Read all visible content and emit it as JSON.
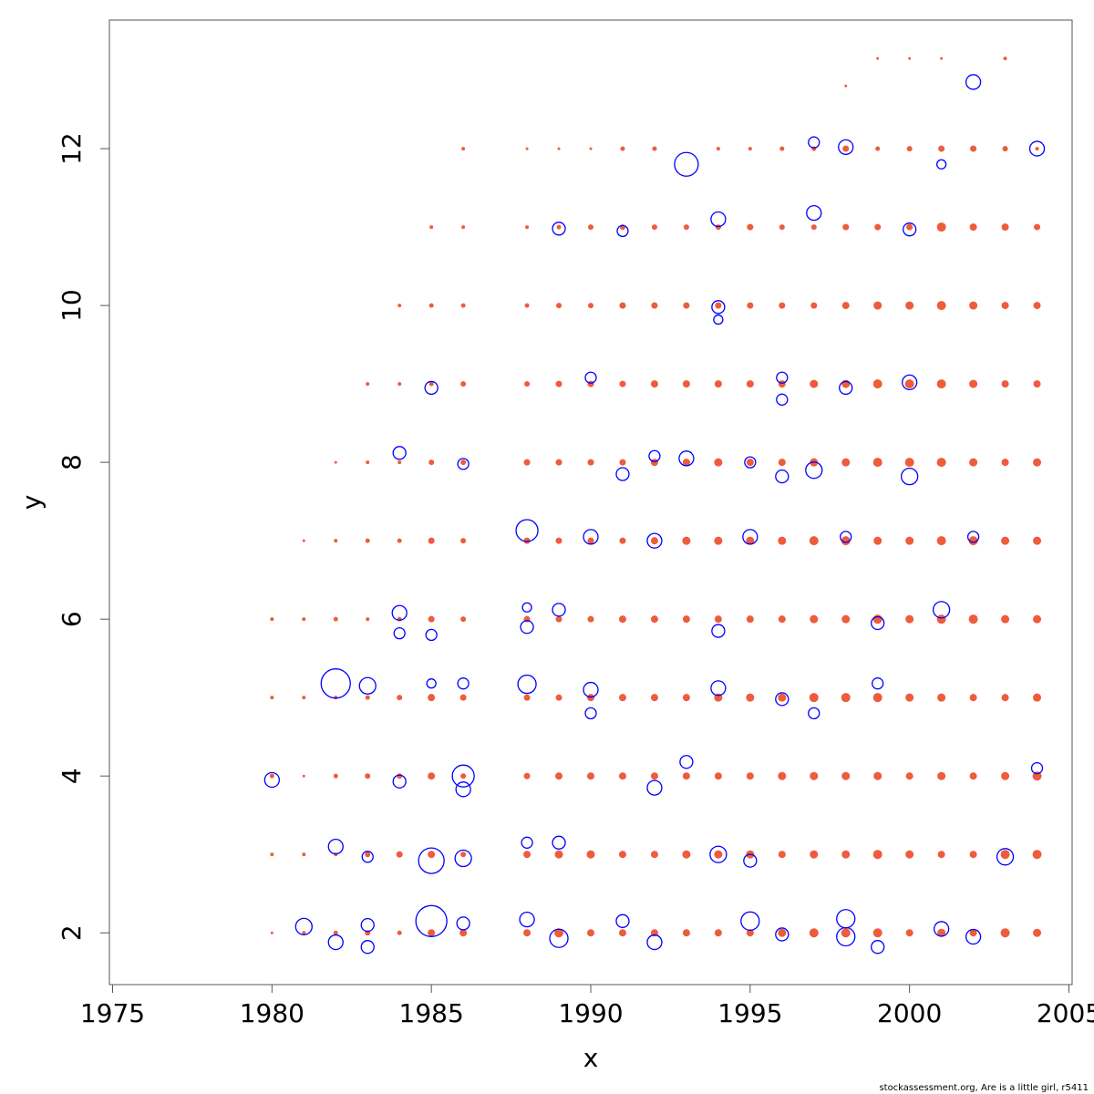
{
  "chart_data": {
    "type": "bubble",
    "xlabel": "x",
    "ylabel": "y",
    "footer": "stockassessment.org, Are is a little girl, r5411",
    "xlim": [
      1974.9,
      2005.1
    ],
    "ylim": [
      1.34,
      13.64
    ],
    "xticks": [
      1975,
      1980,
      1985,
      1990,
      1995,
      2000,
      2005
    ],
    "yticks": [
      2,
      4,
      6,
      8,
      10,
      12
    ],
    "series": [
      {
        "color": "#ee5c3c",
        "filled": true,
        "groups": [
          {
            "x": 1980,
            "y": [
              2,
              3,
              4,
              5,
              6
            ],
            "size": [
              1.5,
              2,
              2.5,
              2,
              2
            ]
          },
          {
            "x": 1981,
            "y": [
              2,
              3,
              4,
              5,
              6,
              7
            ],
            "size": [
              2,
              2,
              1.5,
              2,
              2,
              1.5
            ]
          },
          {
            "x": 1982,
            "y": [
              2,
              3,
              4,
              5,
              6,
              7,
              8
            ],
            "size": [
              2.5,
              2,
              2.5,
              2,
              2.5,
              2,
              1.5
            ]
          },
          {
            "x": 1983,
            "y": [
              2,
              3,
              4,
              5,
              6,
              7,
              8,
              9
            ],
            "size": [
              3,
              3,
              3,
              2.5,
              2,
              2.5,
              2,
              2
            ]
          },
          {
            "x": 1984,
            "y": [
              2,
              3,
              4,
              5,
              6,
              7,
              8,
              9,
              10
            ],
            "size": [
              2.5,
              3.5,
              3,
              3,
              2.5,
              2.5,
              2,
              2,
              2
            ]
          },
          {
            "x": 1985,
            "y": [
              2,
              3,
              4,
              5,
              6,
              7,
              8,
              9,
              10,
              11
            ],
            "size": [
              4,
              4,
              4,
              4,
              3.5,
              3.5,
              3,
              2.5,
              2.5,
              2
            ]
          },
          {
            "x": 1986,
            "y": [
              2,
              3,
              4,
              5,
              6,
              7,
              8,
              9,
              10,
              11,
              12
            ],
            "size": [
              4,
              3,
              3,
              3.5,
              3,
              3,
              3,
              3,
              2.5,
              2,
              2
            ]
          },
          {
            "x": 1988,
            "y": [
              2,
              3,
              4,
              5,
              6,
              7,
              8,
              9,
              10,
              11,
              12
            ],
            "size": [
              4,
              4,
              3.5,
              3.5,
              3.5,
              3.5,
              3.5,
              3,
              2.5,
              2,
              1.5
            ]
          },
          {
            "x": 1989,
            "y": [
              2,
              3,
              4,
              5,
              6,
              7,
              8,
              9,
              10,
              11,
              12
            ],
            "size": [
              5,
              4.5,
              4,
              3.5,
              3.5,
              3.5,
              3.5,
              3.5,
              3,
              2.5,
              1.5
            ]
          },
          {
            "x": 1990,
            "y": [
              2,
              3,
              4,
              5,
              6,
              7,
              8,
              9,
              10,
              11,
              12
            ],
            "size": [
              4,
              4.5,
              4,
              4,
              3.5,
              3.5,
              3.5,
              3.5,
              3,
              3,
              1.5
            ]
          },
          {
            "x": 1991,
            "y": [
              2,
              3,
              4,
              5,
              6,
              7,
              8,
              9,
              10,
              11,
              12
            ],
            "size": [
              4,
              4,
              4,
              4,
              4,
              3.5,
              3.5,
              3.5,
              3.5,
              3,
              2.5
            ]
          },
          {
            "x": 1992,
            "y": [
              2,
              3,
              4,
              5,
              6,
              7,
              8,
              9,
              10,
              11,
              12
            ],
            "size": [
              4,
              4,
              4,
              4,
              4,
              4,
              4,
              4,
              3.5,
              3,
              2.5
            ]
          },
          {
            "x": 1993,
            "y": [
              2,
              3,
              4,
              5,
              6,
              7,
              8,
              9,
              10,
              11
            ],
            "size": [
              4,
              4.5,
              4,
              4,
              4,
              4.5,
              4,
              4,
              3.5,
              3
            ]
          },
          {
            "x": 1994,
            "y": [
              2,
              3,
              4,
              5,
              6,
              7,
              8,
              9,
              10,
              11,
              12
            ],
            "size": [
              4,
              4.5,
              4,
              4.5,
              4,
              4.5,
              4.5,
              4,
              3.5,
              3,
              2
            ]
          },
          {
            "x": 1995,
            "y": [
              2,
              3,
              4,
              5,
              6,
              7,
              8,
              9,
              10,
              11,
              12
            ],
            "size": [
              4,
              4.5,
              4,
              4.5,
              4,
              4.5,
              4,
              4,
              3.5,
              3.5,
              2
            ]
          },
          {
            "x": 1996,
            "y": [
              2,
              3,
              4,
              5,
              6,
              7,
              8,
              9,
              10,
              11,
              12
            ],
            "size": [
              4.5,
              4,
              4.5,
              4.5,
              4,
              4.5,
              4,
              4,
              3.5,
              3,
              2.5
            ]
          },
          {
            "x": 1997,
            "y": [
              2,
              3,
              4,
              5,
              6,
              7,
              8,
              9,
              10,
              11,
              12
            ],
            "size": [
              5,
              4.5,
              4.5,
              5,
              4.5,
              5,
              4.5,
              4.5,
              3.5,
              3,
              2.5
            ]
          },
          {
            "x": 1998,
            "y": [
              2,
              3,
              4,
              5,
              6,
              7,
              8,
              9,
              10,
              11,
              12,
              12.8
            ],
            "size": [
              5,
              4.5,
              4.5,
              5,
              4.5,
              5,
              4.5,
              4.5,
              4,
              3.5,
              3.5,
              1.5
            ]
          },
          {
            "x": 1999,
            "y": [
              2,
              3,
              4,
              5,
              6,
              7,
              8,
              9,
              10,
              11,
              12,
              13.15
            ],
            "size": [
              5,
              5,
              4.5,
              5,
              5,
              4.5,
              5,
              5,
              4.5,
              3.5,
              2.5,
              1.5
            ]
          },
          {
            "x": 2000,
            "y": [
              2,
              3,
              4,
              5,
              6,
              7,
              8,
              9,
              10,
              11,
              12,
              13.15
            ],
            "size": [
              4,
              4.5,
              4,
              4.5,
              4.5,
              4.5,
              5,
              5,
              4.5,
              3.5,
              3,
              1.5
            ]
          },
          {
            "x": 2001,
            "y": [
              2,
              3,
              4,
              5,
              6,
              7,
              8,
              9,
              10,
              11,
              12,
              13.15
            ],
            "size": [
              4.5,
              4,
              4.5,
              4.5,
              5,
              5,
              5,
              5,
              5,
              5,
              3.5,
              1.5
            ]
          },
          {
            "x": 2002,
            "y": [
              2,
              3,
              4,
              5,
              6,
              7,
              8,
              9,
              10,
              11,
              12
            ],
            "size": [
              4,
              4,
              4,
              4,
              5,
              5,
              4.5,
              4.5,
              4.5,
              4,
              3.5
            ]
          },
          {
            "x": 2003,
            "y": [
              2,
              3,
              4,
              5,
              6,
              7,
              8,
              9,
              10,
              11,
              12,
              13.15
            ],
            "size": [
              5,
              5,
              4.5,
              4,
              4.5,
              4.5,
              4,
              4,
              4,
              4,
              3,
              2
            ]
          },
          {
            "x": 2004,
            "y": [
              2,
              3,
              4,
              5,
              6,
              7,
              8,
              9,
              10,
              11,
              12
            ],
            "size": [
              4.5,
              5,
              5,
              4.5,
              4.5,
              4.5,
              4.5,
              4,
              4,
              3.5,
              2
            ]
          }
        ]
      },
      {
        "color": "#0000ff",
        "filled": false,
        "x": [
          1980,
          1981,
          1982,
          1982,
          1982,
          1983,
          1983,
          1983,
          1983,
          1984,
          1984,
          1984,
          1984,
          1985,
          1985,
          1985,
          1985,
          1985,
          1986,
          1986,
          1986,
          1986,
          1986,
          1986,
          1988,
          1988,
          1988,
          1988,
          1988,
          1988,
          1989,
          1989,
          1989,
          1989,
          1990,
          1990,
          1990,
          1990,
          1991,
          1991,
          1991,
          1992,
          1992,
          1992,
          1992,
          1993,
          1993,
          1993,
          1994,
          1994,
          1994,
          1994,
          1994,
          1994,
          1995,
          1995,
          1995,
          1995,
          1996,
          1996,
          1996,
          1996,
          1996,
          1997,
          1997,
          1997,
          1997,
          1998,
          1998,
          1998,
          1998,
          1998,
          1999,
          1999,
          1999,
          2000,
          2000,
          2000,
          2001,
          2001,
          2001,
          2002,
          2002,
          2002,
          2003,
          2004,
          2004
        ],
        "y": [
          3.95,
          2.08,
          5.18,
          3.1,
          1.88,
          5.15,
          2.1,
          1.82,
          2.97,
          8.12,
          6.08,
          5.82,
          3.93,
          8.95,
          2.15,
          2.92,
          5.8,
          5.18,
          4.0,
          3.83,
          2.95,
          7.98,
          5.18,
          2.12,
          7.13,
          5.17,
          2.17,
          6.15,
          5.9,
          3.15,
          10.98,
          1.93,
          3.15,
          6.12,
          9.08,
          7.05,
          5.1,
          4.8,
          10.95,
          7.85,
          2.15,
          8.08,
          7.0,
          3.85,
          1.88,
          11.8,
          8.05,
          4.18,
          11.1,
          9.98,
          9.82,
          5.12,
          3.0,
          5.85,
          8.0,
          7.05,
          2.15,
          2.92,
          9.08,
          8.8,
          7.82,
          4.98,
          1.98,
          12.08,
          11.18,
          7.9,
          4.8,
          12.02,
          8.95,
          2.18,
          1.95,
          7.05,
          5.18,
          5.95,
          1.82,
          7.82,
          10.97,
          9.02,
          6.12,
          11.8,
          2.05,
          12.85,
          1.95,
          7.05,
          2.97,
          12.0,
          4.1
        ],
        "size": [
          8,
          9,
          16,
          8,
          8,
          9,
          7,
          7,
          6,
          7,
          8,
          6,
          7,
          7,
          17,
          14,
          6,
          5,
          12,
          8,
          9,
          6,
          6,
          7,
          12,
          10,
          8,
          5,
          7,
          6,
          7,
          10,
          7,
          7,
          6,
          8,
          8,
          6,
          6,
          7,
          7,
          6,
          8,
          8,
          8,
          13,
          8,
          7,
          8,
          7,
          5,
          8,
          9,
          7,
          6,
          8,
          10,
          7,
          6,
          6,
          7,
          7,
          7,
          6,
          8,
          9,
          6,
          8,
          7,
          10,
          10,
          6,
          6,
          7,
          7,
          9,
          7,
          8,
          9,
          5,
          8,
          8,
          8,
          6,
          9,
          8,
          6
        ]
      }
    ]
  }
}
